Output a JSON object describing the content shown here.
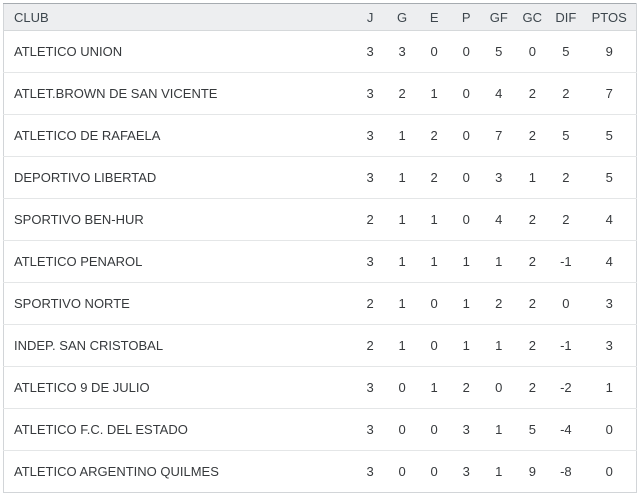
{
  "table": {
    "columns": [
      "CLUB",
      "J",
      "G",
      "E",
      "P",
      "GF",
      "GC",
      "DIF",
      "PTOS"
    ],
    "rows": [
      [
        "ATLETICO UNION",
        "3",
        "3",
        "0",
        "0",
        "5",
        "0",
        "5",
        "9"
      ],
      [
        "ATLET.BROWN DE SAN VICENTE",
        "3",
        "2",
        "1",
        "0",
        "4",
        "2",
        "2",
        "7"
      ],
      [
        "ATLETICO DE RAFAELA",
        "3",
        "1",
        "2",
        "0",
        "7",
        "2",
        "5",
        "5"
      ],
      [
        "DEPORTIVO LIBERTAD",
        "3",
        "1",
        "2",
        "0",
        "3",
        "1",
        "2",
        "5"
      ],
      [
        "SPORTIVO BEN-HUR",
        "2",
        "1",
        "1",
        "0",
        "4",
        "2",
        "2",
        "4"
      ],
      [
        "ATLETICO PENAROL",
        "3",
        "1",
        "1",
        "1",
        "1",
        "2",
        "-1",
        "4"
      ],
      [
        "SPORTIVO NORTE",
        "2",
        "1",
        "0",
        "1",
        "2",
        "2",
        "0",
        "3"
      ],
      [
        "INDEP. SAN CRISTOBAL",
        "2",
        "1",
        "0",
        "1",
        "1",
        "2",
        "-1",
        "3"
      ],
      [
        "ATLETICO 9 DE JULIO",
        "3",
        "0",
        "1",
        "2",
        "0",
        "2",
        "-2",
        "1"
      ],
      [
        "ATLETICO F.C. DEL ESTADO",
        "3",
        "0",
        "0",
        "3",
        "1",
        "5",
        "-4",
        "0"
      ],
      [
        "ATLETICO ARGENTINO QUILMES",
        "3",
        "0",
        "0",
        "3",
        "1",
        "9",
        "-8",
        "0"
      ]
    ]
  },
  "colors": {
    "header_bg": "#edeef0",
    "header_text": "#3d464d",
    "body_text": "#36393c",
    "outer_border": "#d2d5d8",
    "outer_border_top": "#a6abb0",
    "row_separator": "#e4e6e7",
    "page_bg": "#ffffff"
  }
}
